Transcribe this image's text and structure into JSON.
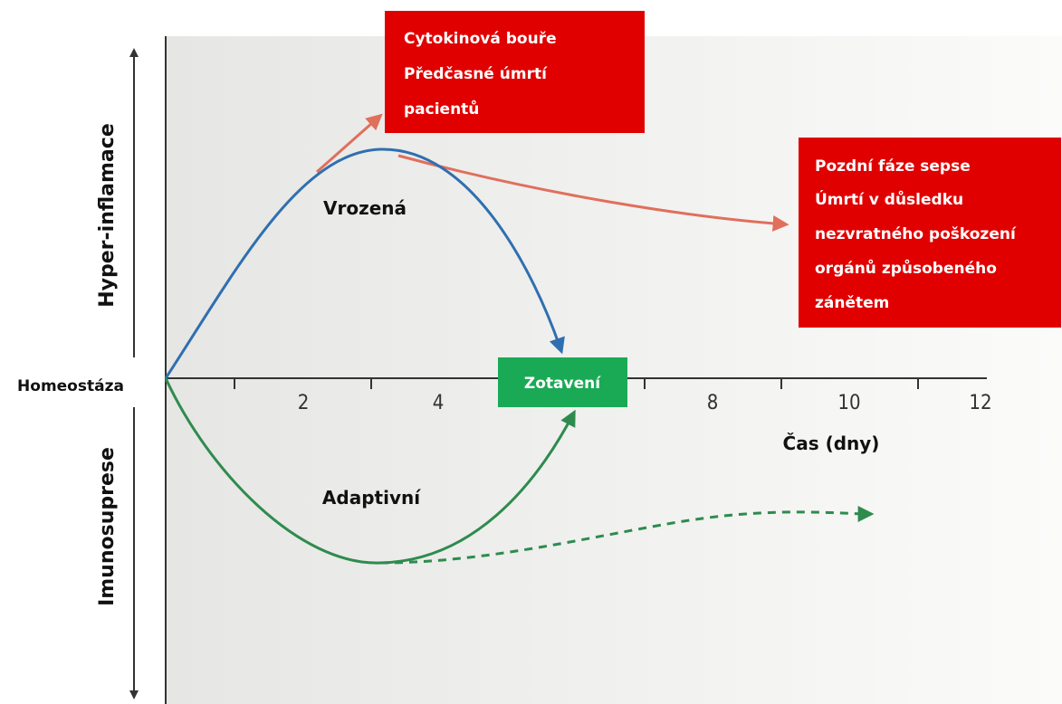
{
  "axes": {
    "y_upper_label": "Hyper-inflamace",
    "y_lower_label": "Imunosuprese",
    "origin_label": "Homeostáza",
    "x_label": "Čas (dny)",
    "x_ticks": [
      2,
      4,
      8,
      10,
      12
    ]
  },
  "curves": {
    "innate": "Vrozená",
    "adaptive": "Adaptivní"
  },
  "boxes": {
    "early_death": [
      "Cytokinová bouře",
      "Předčasné úmrtí",
      "pacientů"
    ],
    "late_death": [
      "Pozdní fáze sepse",
      "Úmrtí v důsledku",
      "nezvratného poškození",
      "orgánů způsobeného",
      "zánětem"
    ],
    "recovery": "Zotavení"
  }
}
